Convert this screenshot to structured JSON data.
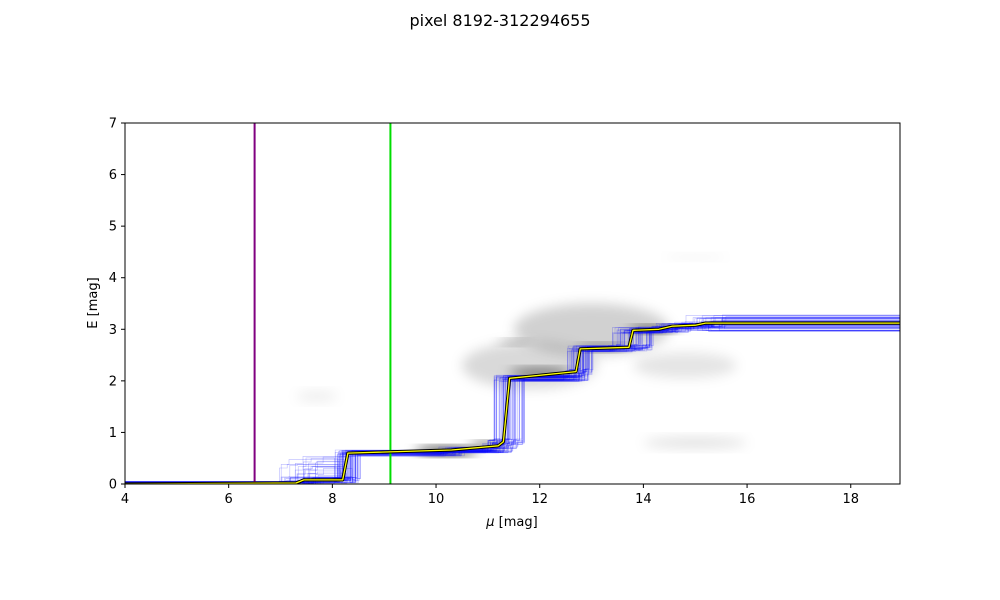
{
  "chart_data": {
    "type": "line",
    "title": "pixel 8192-312294655",
    "xlabel_symbol": "μ",
    "xlabel_unit": " [mag]",
    "ylabel": "E [mag]",
    "xlim": [
      4,
      18.95
    ],
    "ylim": [
      0,
      7
    ],
    "x_ticks": [
      4,
      6,
      8,
      10,
      12,
      14,
      16,
      18
    ],
    "y_ticks": [
      0,
      1,
      2,
      3,
      4,
      5,
      6,
      7
    ],
    "grid": false,
    "vertical_lines": [
      {
        "x": 6.5,
        "color": "#800080"
      },
      {
        "x": 9.12,
        "color": "#00dd00"
      }
    ],
    "best_fit_curve": {
      "color_inner": "#ffff00",
      "color_outer": "#000000",
      "points": [
        [
          4.0,
          0.0
        ],
        [
          7.3,
          0.02
        ],
        [
          7.45,
          0.08
        ],
        [
          8.2,
          0.08
        ],
        [
          8.3,
          0.6
        ],
        [
          10.3,
          0.66
        ],
        [
          11.2,
          0.74
        ],
        [
          11.3,
          0.82
        ],
        [
          11.42,
          2.05
        ],
        [
          12.7,
          2.18
        ],
        [
          12.78,
          2.62
        ],
        [
          13.72,
          2.65
        ],
        [
          13.8,
          2.98
        ],
        [
          14.3,
          3.0
        ],
        [
          14.55,
          3.06
        ],
        [
          15.0,
          3.08
        ],
        [
          15.2,
          3.12
        ],
        [
          18.95,
          3.12
        ]
      ]
    },
    "samples": {
      "color": "#0000ff",
      "count": 60,
      "final_value_range": [
        2.95,
        3.28
      ]
    },
    "density_blobs": [
      {
        "x": 10.2,
        "y": 0.64,
        "rx": 0.6,
        "ry": 0.07,
        "opacity": 0.9
      },
      {
        "x": 11.0,
        "y": 0.75,
        "rx": 0.35,
        "ry": 0.06,
        "opacity": 0.7
      },
      {
        "x": 12.0,
        "y": 2.15,
        "rx": 0.6,
        "ry": 0.08,
        "opacity": 0.6
      },
      {
        "x": 14.2,
        "y": 3.0,
        "rx": 0.5,
        "ry": 0.06,
        "opacity": 0.7
      },
      {
        "x": 13.2,
        "y": 2.65,
        "rx": 0.5,
        "ry": 0.06,
        "opacity": 0.5
      },
      {
        "x": 11.5,
        "y": 2.75,
        "rx": 0.3,
        "ry": 0.05,
        "opacity": 0.35
      },
      {
        "x": 13.0,
        "y": 3.0,
        "rx": 1.5,
        "ry": 0.5,
        "opacity": 0.18
      },
      {
        "x": 11.8,
        "y": 2.3,
        "rx": 1.3,
        "ry": 0.45,
        "opacity": 0.15
      },
      {
        "x": 14.8,
        "y": 2.3,
        "rx": 1.0,
        "ry": 0.25,
        "opacity": 0.1
      },
      {
        "x": 15.0,
        "y": 0.8,
        "rx": 1.0,
        "ry": 0.1,
        "opacity": 0.12
      },
      {
        "x": 7.7,
        "y": 1.7,
        "rx": 0.4,
        "ry": 0.1,
        "opacity": 0.07
      },
      {
        "x": 15.0,
        "y": 4.4,
        "rx": 0.6,
        "ry": 0.05,
        "opacity": 0.05
      }
    ]
  }
}
